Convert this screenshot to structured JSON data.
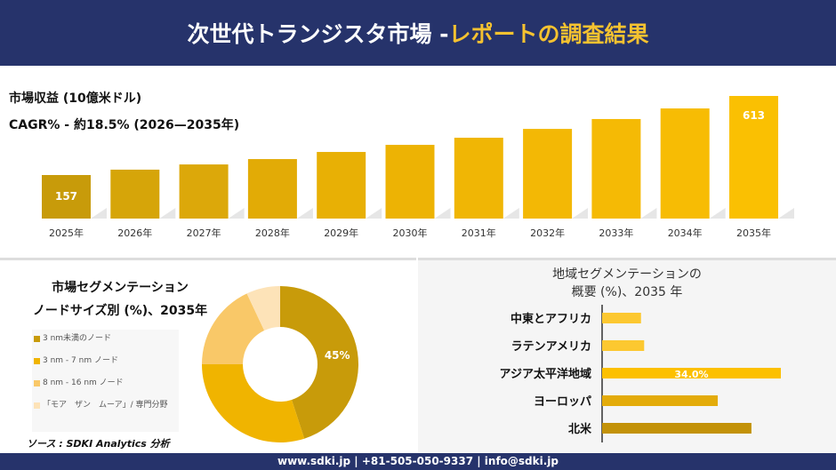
{
  "header": {
    "title_main": "次世代トランジスタ市場 -",
    "title_highlight": "レポートの調査結果"
  },
  "colors": {
    "navy": "#26336b",
    "accent": "#f5c230"
  },
  "chart_data": [
    {
      "type": "bar",
      "title": "市場収益 (10億米ドル)",
      "subtitle": "CAGR% - 約18.5% (2026—2035年)",
      "categories": [
        "2025年",
        "2026年",
        "2027年",
        "2028年",
        "2029年",
        "2030年",
        "2031年",
        "2032年",
        "2033年",
        "2034年",
        "2035年"
      ],
      "values": [
        157,
        188,
        218,
        249,
        290,
        331,
        372,
        423,
        480,
        541,
        613
      ],
      "data_labels": {
        "0": "157",
        "10": "613"
      },
      "colors": [
        "#c89b0a",
        "#d6a509",
        "#dca80a",
        "#e2ab06",
        "#e8b005",
        "#edb304",
        "#f0b605",
        "#f3b805",
        "#f5ba05",
        "#f7bc04",
        "#fac002"
      ]
    },
    {
      "type": "pie",
      "title": "市場セグメンテーション ノードサイズ別 (%)、2035年",
      "title_lines": [
        "市場セグメンテーション",
        "ノードサイズ別 (%)、2035年"
      ],
      "labels": [
        "3 nm未満のノード",
        "3 nm - 7 nm ノード",
        "8 nm - 16 nm ノード",
        "「モア　ザン　ムーア」/ 専門分野"
      ],
      "values": [
        45,
        30,
        18,
        7
      ],
      "data_labels": {
        "0": "45%"
      },
      "colors": [
        "#c89b0a",
        "#f0b400",
        "#f9c868",
        "#fde3b8"
      ],
      "donut": true
    },
    {
      "type": "bar",
      "orientation": "horizontal",
      "title": "地域セグメンテーションの 概要 (%)、2035 年",
      "title_lines": [
        "地域セグメンテーションの",
        "概要 (%)、2035 年"
      ],
      "categories": [
        "中東とアフリカ",
        "ラテンアメリカ",
        "アジア太平洋地域",
        "ヨーロッパ",
        "北米"
      ],
      "values": [
        7.4,
        8.0,
        34.0,
        22.0,
        28.4
      ],
      "data_labels": {
        "2": "34.0%"
      },
      "colors": [
        "#fcc830",
        "#fcc830",
        "#fcc000",
        "#e3ab0a",
        "#c39208"
      ]
    }
  ],
  "source": "ソース : SDKI Analytics 分析",
  "footer": "www.sdki.jp | +81-505-050-9337 | info@sdki.jp"
}
